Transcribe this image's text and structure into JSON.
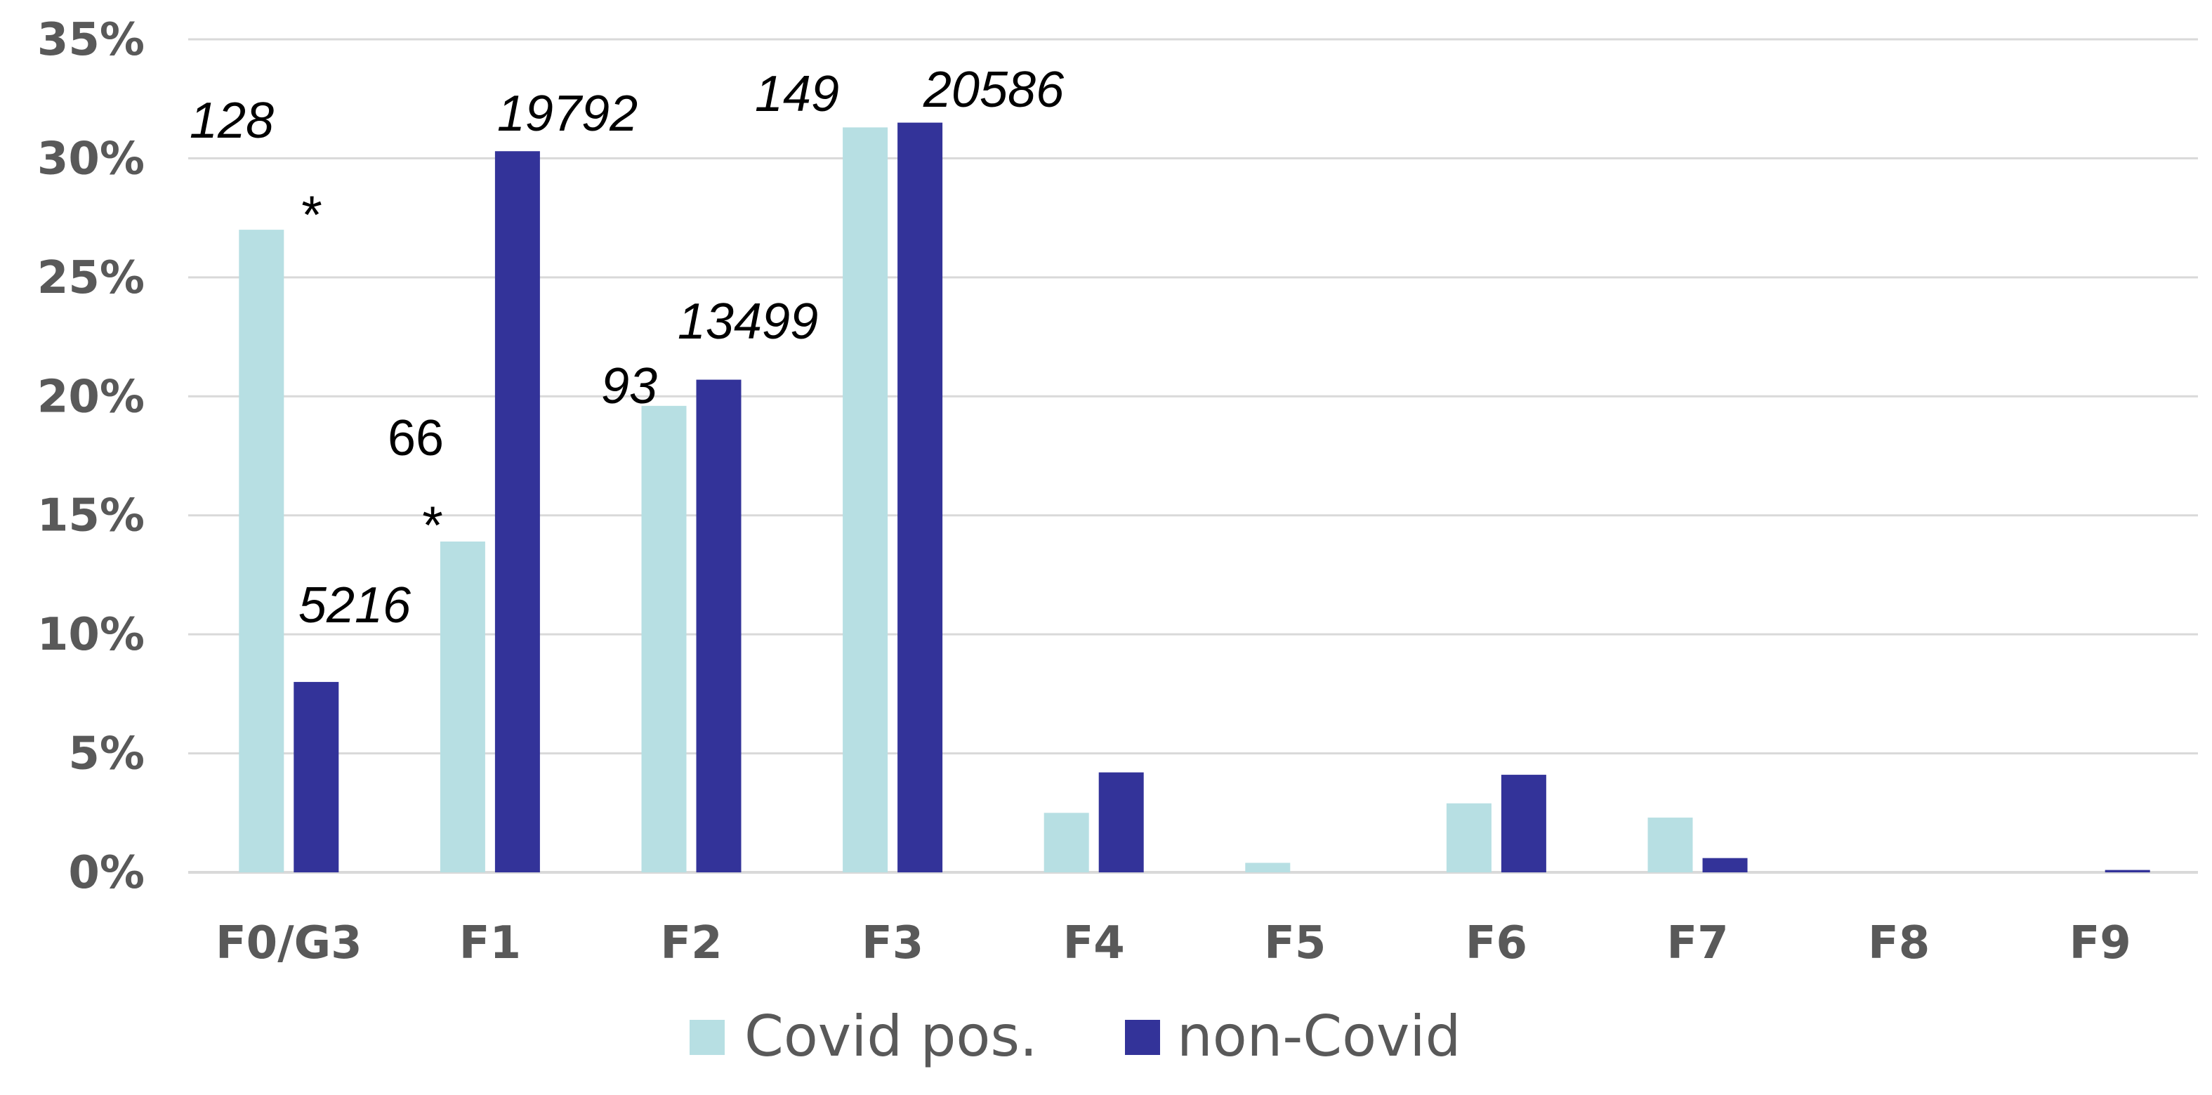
{
  "chart_data": {
    "type": "bar",
    "categories": [
      "F0/G3",
      "F1",
      "F2",
      "F3",
      "F4",
      "F5",
      "F6",
      "F7",
      "F8",
      "F9"
    ],
    "series": [
      {
        "name": "Covid pos.",
        "color": "#b7dfe3",
        "values": [
          27.0,
          13.9,
          19.6,
          31.3,
          2.5,
          0.4,
          2.9,
          2.3,
          0.0,
          0.0
        ]
      },
      {
        "name": "non-Covid",
        "color": "#333399",
        "values": [
          8.0,
          30.3,
          20.7,
          31.5,
          4.2,
          0.0,
          4.1,
          0.6,
          0.0,
          0.1
        ]
      }
    ],
    "yticks": [
      "0%",
      "5%",
      "10%",
      "15%",
      "20%",
      "25%",
      "30%",
      "35%"
    ],
    "ylim": [
      0,
      35
    ],
    "grid": true,
    "legend": "bottom-center",
    "data_labels": [
      {
        "series": 0,
        "category": 0,
        "text": "128",
        "style": "italic"
      },
      {
        "series": 1,
        "category": 0,
        "text": "5216",
        "style": "italic"
      },
      {
        "series": 0,
        "category": 1,
        "text": "66",
        "style": "normal"
      },
      {
        "series": 1,
        "category": 1,
        "text": "19792",
        "style": "italic"
      },
      {
        "series": 0,
        "category": 2,
        "text": "93",
        "style": "italic"
      },
      {
        "series": 1,
        "category": 2,
        "text": "13499",
        "style": "italic"
      },
      {
        "series": 0,
        "category": 3,
        "text": "149",
        "style": "italic"
      },
      {
        "series": 1,
        "category": 3,
        "text": "20586",
        "style": "italic"
      }
    ],
    "annotations": [
      {
        "category": 0,
        "text": "*"
      },
      {
        "category": 1,
        "text": "*"
      }
    ]
  }
}
